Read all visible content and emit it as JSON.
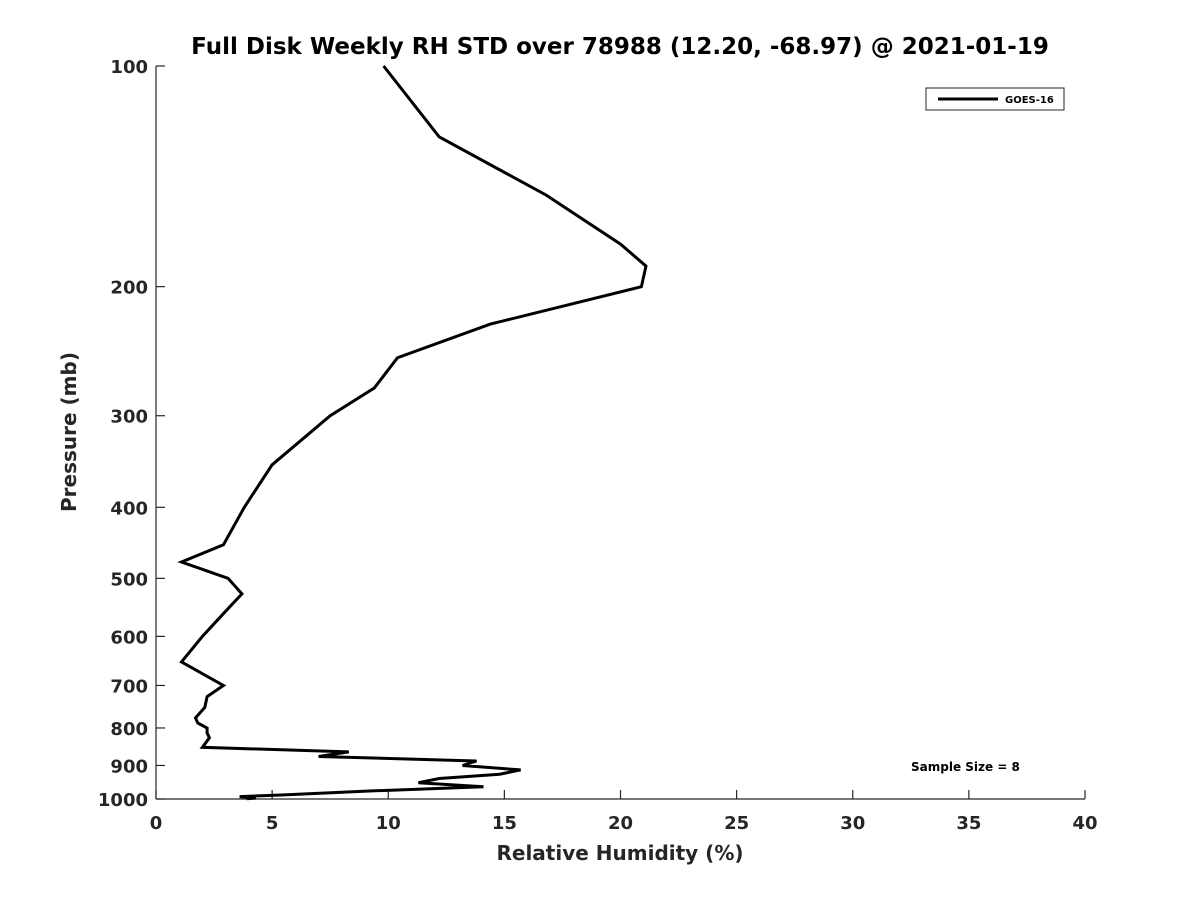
{
  "chart_data": {
    "type": "line",
    "title": "Full Disk Weekly RH STD over 78988 (12.20, -68.97) @ 2021-01-19",
    "xlabel": "Relative Humidity (%)",
    "ylabel": "Pressure (mb)",
    "xlim": [
      0,
      40
    ],
    "ylim": [
      100,
      1000
    ],
    "y_scale": "log",
    "y_reversed": true,
    "grid": false,
    "legend_position": "top-right",
    "x_ticks": [
      0,
      5,
      10,
      15,
      20,
      25,
      30,
      35,
      40
    ],
    "y_ticks": [
      100,
      200,
      300,
      400,
      500,
      600,
      700,
      800,
      900,
      1000
    ],
    "series": [
      {
        "name": "GOES-16",
        "color": "#000000",
        "points": [
          [
            9.8,
            100
          ],
          [
            12.2,
            125
          ],
          [
            16.8,
            150
          ],
          [
            20.0,
            175
          ],
          [
            21.1,
            187.5
          ],
          [
            20.9,
            200
          ],
          [
            14.4,
            225
          ],
          [
            10.4,
            250
          ],
          [
            9.4,
            275
          ],
          [
            7.5,
            300
          ],
          [
            5.0,
            350
          ],
          [
            3.8,
            400
          ],
          [
            2.9,
            450
          ],
          [
            1.1,
            475
          ],
          [
            3.1,
            500
          ],
          [
            3.7,
            525
          ],
          [
            3.1,
            550
          ],
          [
            2.0,
            600
          ],
          [
            1.1,
            650
          ],
          [
            2.9,
            700
          ],
          [
            2.2,
            725
          ],
          [
            2.1,
            750
          ],
          [
            1.7,
            775
          ],
          [
            1.8,
            787.5
          ],
          [
            2.2,
            800
          ],
          [
            2.2,
            812.5
          ],
          [
            2.3,
            825
          ],
          [
            2.0,
            850
          ],
          [
            8.3,
            862.5
          ],
          [
            7.0,
            875
          ],
          [
            13.8,
            887.5
          ],
          [
            13.2,
            900
          ],
          [
            15.7,
            912.5
          ],
          [
            14.8,
            925
          ],
          [
            12.2,
            937.5
          ],
          [
            11.3,
            950
          ],
          [
            14.1,
            962.5
          ],
          [
            9.3,
            975
          ],
          [
            5.4,
            987.5
          ],
          [
            3.6,
            992.5
          ],
          [
            4.3,
            997
          ],
          [
            3.9,
            999
          ],
          [
            3.9,
            1000
          ]
        ]
      }
    ],
    "annotations": [
      {
        "text": "Sample Size = 8"
      }
    ]
  }
}
